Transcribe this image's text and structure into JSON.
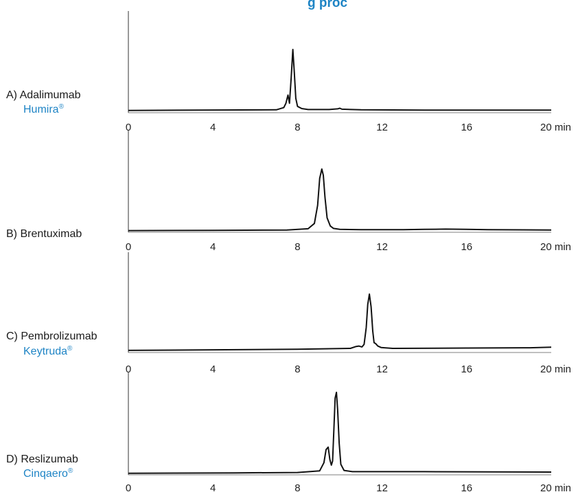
{
  "accent_color": "#1e84c5",
  "trace_color": "#111111",
  "title_fragment": "g proc",
  "chart_data": [
    {
      "type": "line",
      "label": "A) Adalimumab",
      "brand": "Humira",
      "brand_mark": "®",
      "x_unit": "min",
      "xlim": [
        0,
        20
      ],
      "xticks": [
        0,
        4,
        8,
        12,
        16,
        20
      ],
      "ylim": [
        0,
        1
      ],
      "grid": false,
      "series": [
        {
          "x": [
            0,
            7.0,
            7.35,
            7.45,
            7.55,
            7.62,
            7.7,
            7.78,
            7.85,
            7.92,
            8.0,
            8.2,
            8.5,
            9.5,
            9.9,
            10.0,
            10.1,
            11,
            14,
            17,
            20
          ],
          "y": [
            0.025,
            0.035,
            0.07,
            0.14,
            0.27,
            0.14,
            0.55,
            1.0,
            0.62,
            0.22,
            0.09,
            0.055,
            0.04,
            0.04,
            0.05,
            0.06,
            0.045,
            0.035,
            0.03,
            0.03,
            0.03
          ]
        }
      ]
    },
    {
      "type": "line",
      "label": "B) Brentuximab",
      "brand": "",
      "brand_mark": "",
      "x_unit": "min",
      "xlim": [
        0,
        20
      ],
      "xticks": [
        0,
        4,
        8,
        12,
        16,
        20
      ],
      "ylim": [
        0,
        1
      ],
      "grid": false,
      "series": [
        {
          "x": [
            0,
            4,
            7.5,
            8.5,
            8.8,
            8.95,
            9.05,
            9.15,
            9.22,
            9.3,
            9.4,
            9.55,
            9.7,
            10.0,
            11,
            13,
            14,
            15,
            16,
            17,
            20
          ],
          "y": [
            0.015,
            0.02,
            0.025,
            0.045,
            0.13,
            0.42,
            0.85,
            1.0,
            0.9,
            0.55,
            0.22,
            0.09,
            0.05,
            0.035,
            0.03,
            0.03,
            0.035,
            0.04,
            0.035,
            0.03,
            0.025
          ]
        }
      ]
    },
    {
      "type": "line",
      "label": "C) Pembrolizumab",
      "brand": "Keytruda",
      "brand_mark": "®",
      "x_unit": "min",
      "xlim": [
        0,
        20
      ],
      "xticks": [
        0,
        4,
        8,
        12,
        16,
        20
      ],
      "ylim": [
        0,
        1
      ],
      "grid": false,
      "series": [
        {
          "x": [
            0,
            4,
            8,
            10.5,
            10.75,
            10.9,
            11.05,
            11.15,
            11.25,
            11.32,
            11.4,
            11.48,
            11.56,
            11.62,
            11.7,
            11.8,
            11.95,
            12.5,
            16,
            19,
            20
          ],
          "y": [
            0.025,
            0.035,
            0.045,
            0.06,
            0.09,
            0.1,
            0.085,
            0.13,
            0.42,
            0.82,
            1.0,
            0.78,
            0.36,
            0.16,
            0.14,
            0.1,
            0.075,
            0.06,
            0.065,
            0.07,
            0.08
          ]
        }
      ]
    },
    {
      "type": "line",
      "label": "D) Reslizumab",
      "brand": "Cinqaero",
      "brand_mark": "®",
      "x_unit": "min",
      "xlim": [
        0,
        20
      ],
      "xticks": [
        0,
        4,
        8,
        12,
        16,
        20
      ],
      "ylim": [
        0,
        1
      ],
      "grid": false,
      "series": [
        {
          "x": [
            0,
            5,
            8,
            9.05,
            9.25,
            9.35,
            9.45,
            9.53,
            9.6,
            9.66,
            9.72,
            9.78,
            9.84,
            9.9,
            9.97,
            10.05,
            10.2,
            10.6,
            14,
            20
          ],
          "y": [
            0.01,
            0.015,
            0.02,
            0.04,
            0.14,
            0.3,
            0.33,
            0.18,
            0.11,
            0.16,
            0.55,
            0.93,
            1.0,
            0.78,
            0.38,
            0.12,
            0.045,
            0.03,
            0.03,
            0.025
          ]
        }
      ]
    }
  ]
}
